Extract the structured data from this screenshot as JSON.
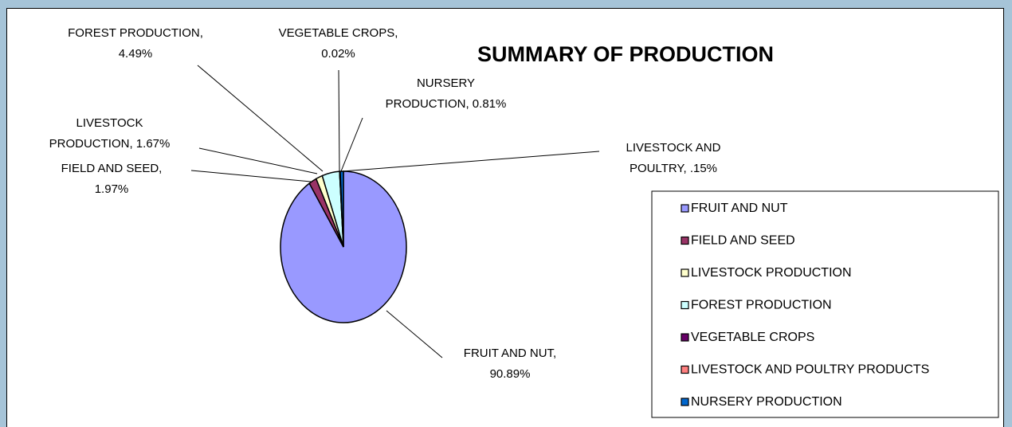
{
  "chart_data": {
    "type": "pie",
    "title": "SUMMARY OF PRODUCTION",
    "categories": [
      "FRUIT AND NUT",
      "FIELD AND SEED",
      "LIVESTOCK PRODUCTION",
      "FOREST PRODUCTION",
      "VEGETABLE CROPS",
      "LIVESTOCK AND POULTRY PRODUCTS",
      "NURSERY PRODUCTION"
    ],
    "values": [
      90.89,
      1.97,
      1.67,
      4.49,
      0.02,
      0.15,
      0.81
    ],
    "value_labels": [
      "FRUIT AND NUT, 90.89%",
      "FIELD AND SEED, 1.97%",
      "LIVESTOCK PRODUCTION, 1.67%",
      "FOREST PRODUCTION, 4.49%",
      "VEGETABLE CROPS, 0.02%",
      "LIVESTOCK AND POULTRY, .15%",
      "NURSERY PRODUCTION, 0.81%"
    ],
    "colors": [
      "#9999ff",
      "#993366",
      "#ffffcc",
      "#ccffff",
      "#660066",
      "#ff8080",
      "#0066cc"
    ],
    "legend": "right"
  }
}
